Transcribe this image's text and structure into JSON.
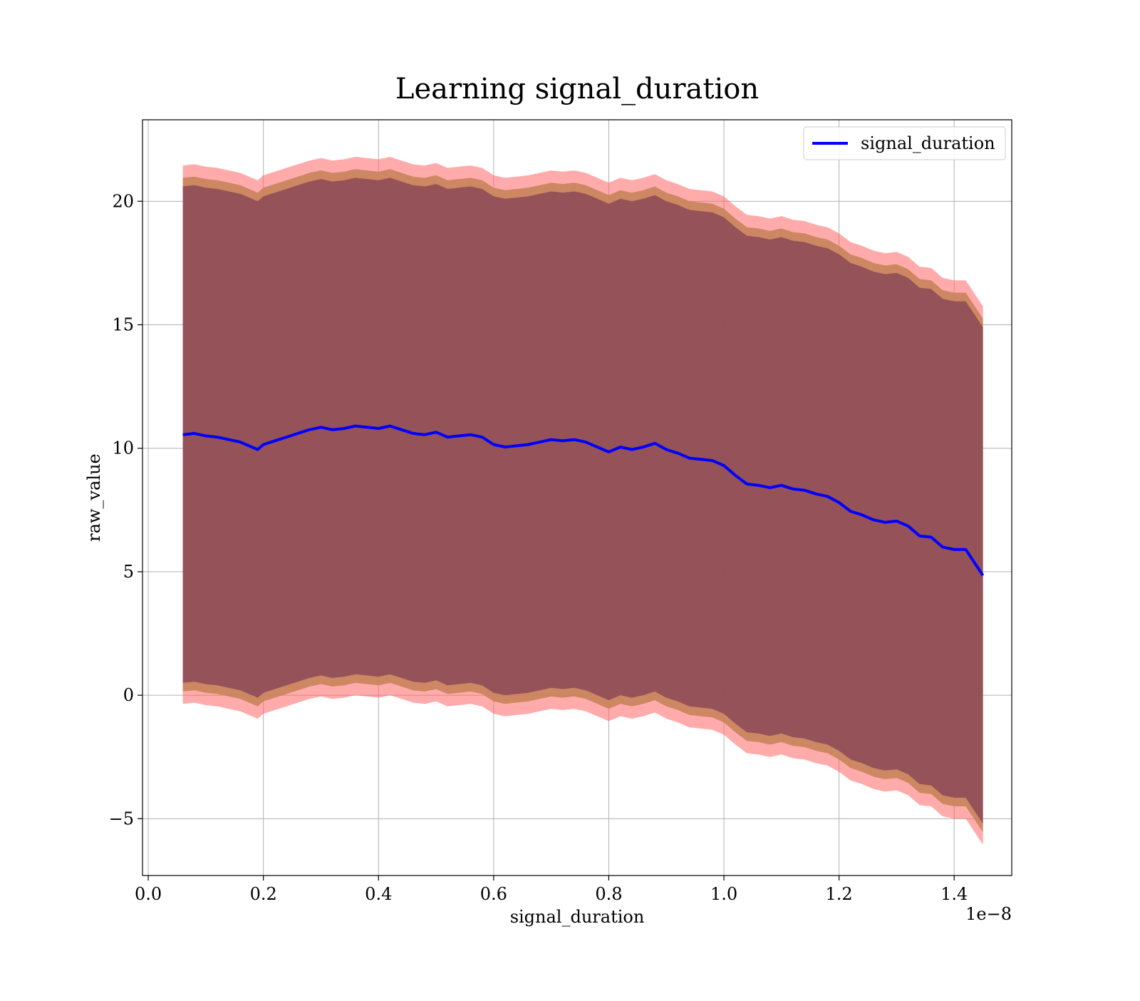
{
  "chart_data": {
    "type": "line",
    "title": "Learning signal_duration",
    "xlabel": "signal_duration",
    "ylabel": "raw_value",
    "x_offset_label": "1e−8",
    "xlim": [
      -0.01,
      1.5
    ],
    "ylim": [
      -7.3,
      23.3
    ],
    "x_ticks": [
      0.0,
      0.2,
      0.4,
      0.6,
      0.8,
      1.0,
      1.2,
      1.4
    ],
    "x_tick_labels": [
      "0.0",
      "0.2",
      "0.4",
      "0.6",
      "0.8",
      "1.0",
      "1.2",
      "1.4"
    ],
    "y_ticks": [
      -5,
      0,
      5,
      10,
      15,
      20
    ],
    "y_tick_labels": [
      "−5",
      "0",
      "5",
      "10",
      "15",
      "20"
    ],
    "grid": true,
    "legend_position": "top-right",
    "colors": {
      "line": "#0000ff",
      "band_outer": "#ff6666",
      "band_middle": "#c8835a",
      "band_inner": "#7f3e55"
    },
    "series": [
      {
        "name": "signal_duration",
        "x": [
          0.06,
          0.08,
          0.1,
          0.12,
          0.14,
          0.16,
          0.18,
          0.19,
          0.2,
          0.22,
          0.24,
          0.26,
          0.28,
          0.3,
          0.32,
          0.34,
          0.36,
          0.38,
          0.4,
          0.42,
          0.44,
          0.46,
          0.48,
          0.5,
          0.52,
          0.54,
          0.56,
          0.58,
          0.6,
          0.62,
          0.64,
          0.66,
          0.68,
          0.7,
          0.72,
          0.74,
          0.76,
          0.78,
          0.8,
          0.82,
          0.84,
          0.86,
          0.88,
          0.9,
          0.92,
          0.94,
          0.96,
          0.98,
          1.0,
          1.02,
          1.04,
          1.06,
          1.08,
          1.1,
          1.12,
          1.14,
          1.16,
          1.18,
          1.2,
          1.22,
          1.24,
          1.26,
          1.28,
          1.3,
          1.32,
          1.34,
          1.36,
          1.38,
          1.4,
          1.42,
          1.45
        ],
        "y": [
          10.55,
          10.6,
          10.5,
          10.45,
          10.35,
          10.25,
          10.05,
          9.95,
          10.15,
          10.3,
          10.45,
          10.6,
          10.75,
          10.85,
          10.75,
          10.8,
          10.9,
          10.85,
          10.8,
          10.9,
          10.75,
          10.6,
          10.55,
          10.65,
          10.45,
          10.5,
          10.55,
          10.45,
          10.15,
          10.05,
          10.1,
          10.15,
          10.25,
          10.35,
          10.3,
          10.35,
          10.25,
          10.05,
          9.85,
          10.05,
          9.95,
          10.05,
          10.2,
          9.95,
          9.8,
          9.6,
          9.55,
          9.5,
          9.3,
          8.9,
          8.55,
          8.5,
          8.4,
          8.5,
          8.35,
          8.3,
          8.15,
          8.05,
          7.8,
          7.45,
          7.3,
          7.1,
          7.0,
          7.05,
          6.85,
          6.45,
          6.4,
          6.0,
          5.9,
          5.9,
          4.85
        ],
        "band_outer_half_width": 10.9,
        "band_middle_half_width": 10.4,
        "band_inner_half_width": 10.05
      }
    ]
  }
}
